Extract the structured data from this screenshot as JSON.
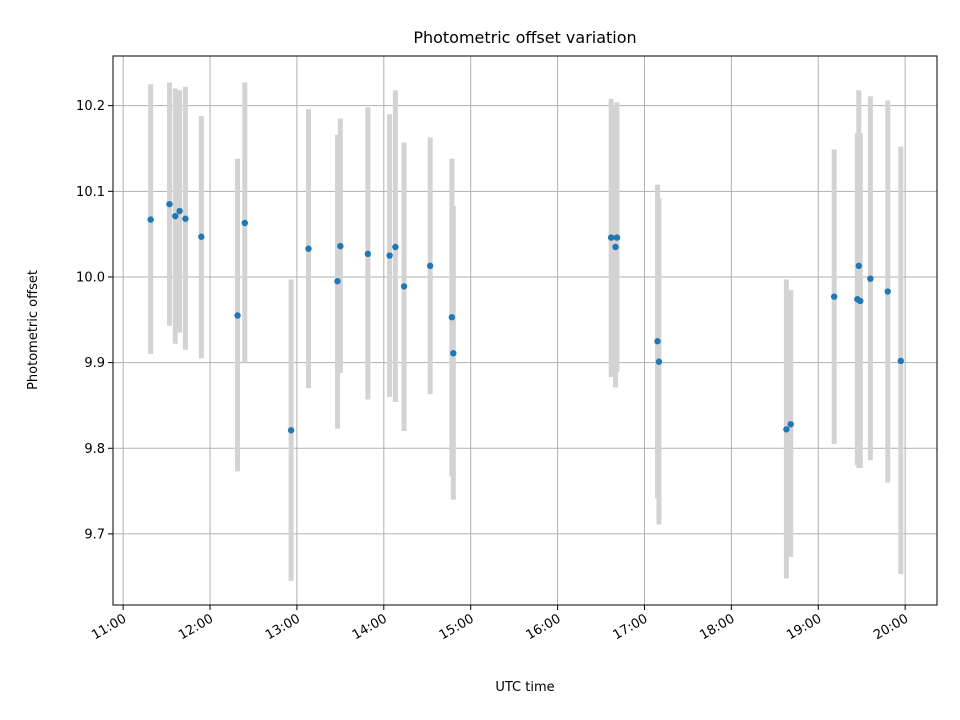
{
  "chart_data": {
    "type": "scatter",
    "title": "Photometric offset variation",
    "xlabel": "UTC time",
    "ylabel": "Photometric offset",
    "x_ticks": [
      "11:00",
      "12:00",
      "13:00",
      "14:00",
      "15:00",
      "16:00",
      "17:00",
      "18:00",
      "19:00",
      "20:00"
    ],
    "y_ticks": [
      "9.7",
      "9.8",
      "9.9",
      "10.0",
      "10.1",
      "10.2"
    ],
    "xlim": [
      "10:53",
      "20:22"
    ],
    "ylim": [
      9.617,
      10.258
    ],
    "grid": true,
    "legend": "none",
    "colors": {
      "point": "#1f77b4",
      "errorbar": "#d3d3d3",
      "grid": "#b0b0b0"
    },
    "points": [
      {
        "x": "11:19",
        "y": 10.067,
        "ylow": 9.91,
        "yhigh": 10.225
      },
      {
        "x": "11:32",
        "y": 10.085,
        "ylow": 9.943,
        "yhigh": 10.227
      },
      {
        "x": "11:36",
        "y": 10.071,
        "ylow": 9.922,
        "yhigh": 10.22
      },
      {
        "x": "11:39",
        "y": 10.077,
        "ylow": 9.935,
        "yhigh": 10.218
      },
      {
        "x": "11:43",
        "y": 10.068,
        "ylow": 9.915,
        "yhigh": 10.222
      },
      {
        "x": "11:54",
        "y": 10.047,
        "ylow": 9.905,
        "yhigh": 10.188
      },
      {
        "x": "12:19",
        "y": 9.955,
        "ylow": 9.773,
        "yhigh": 10.138
      },
      {
        "x": "12:24",
        "y": 10.063,
        "ylow": 9.9,
        "yhigh": 10.227
      },
      {
        "x": "12:56",
        "y": 9.821,
        "ylow": 9.645,
        "yhigh": 9.997
      },
      {
        "x": "13:08",
        "y": 10.033,
        "ylow": 9.87,
        "yhigh": 10.196
      },
      {
        "x": "13:28",
        "y": 9.995,
        "ylow": 9.823,
        "yhigh": 10.166
      },
      {
        "x": "13:30",
        "y": 10.036,
        "ylow": 9.888,
        "yhigh": 10.185
      },
      {
        "x": "13:49",
        "y": 10.027,
        "ylow": 9.857,
        "yhigh": 10.198
      },
      {
        "x": "14:04",
        "y": 10.025,
        "ylow": 9.86,
        "yhigh": 10.19
      },
      {
        "x": "14:08",
        "y": 10.035,
        "ylow": 9.854,
        "yhigh": 10.218
      },
      {
        "x": "14:14",
        "y": 9.989,
        "ylow": 9.82,
        "yhigh": 10.157
      },
      {
        "x": "14:32",
        "y": 10.013,
        "ylow": 9.863,
        "yhigh": 10.163
      },
      {
        "x": "14:47",
        "y": 9.953,
        "ylow": 9.767,
        "yhigh": 10.138
      },
      {
        "x": "14:48",
        "y": 9.911,
        "ylow": 9.74,
        "yhigh": 10.083
      },
      {
        "x": "16:37",
        "y": 10.046,
        "ylow": 9.883,
        "yhigh": 10.208
      },
      {
        "x": "16:40",
        "y": 10.035,
        "ylow": 9.871,
        "yhigh": 10.2
      },
      {
        "x": "16:41",
        "y": 10.046,
        "ylow": 9.889,
        "yhigh": 10.204
      },
      {
        "x": "17:09",
        "y": 9.925,
        "ylow": 9.742,
        "yhigh": 10.108
      },
      {
        "x": "17:10",
        "y": 9.901,
        "ylow": 9.711,
        "yhigh": 10.092
      },
      {
        "x": "18:38",
        "y": 9.822,
        "ylow": 9.648,
        "yhigh": 9.997
      },
      {
        "x": "18:41",
        "y": 9.828,
        "ylow": 9.673,
        "yhigh": 9.985
      },
      {
        "x": "19:11",
        "y": 9.977,
        "ylow": 9.805,
        "yhigh": 10.149
      },
      {
        "x": "19:27",
        "y": 9.974,
        "ylow": 9.78,
        "yhigh": 10.168
      },
      {
        "x": "19:28",
        "y": 10.013,
        "ylow": 9.777,
        "yhigh": 10.218
      },
      {
        "x": "19:29",
        "y": 9.972,
        "ylow": 9.777,
        "yhigh": 10.168
      },
      {
        "x": "19:36",
        "y": 9.998,
        "ylow": 9.786,
        "yhigh": 10.211
      },
      {
        "x": "19:48",
        "y": 9.983,
        "ylow": 9.76,
        "yhigh": 10.206
      },
      {
        "x": "19:57",
        "y": 9.902,
        "ylow": 9.653,
        "yhigh": 10.152
      }
    ]
  }
}
